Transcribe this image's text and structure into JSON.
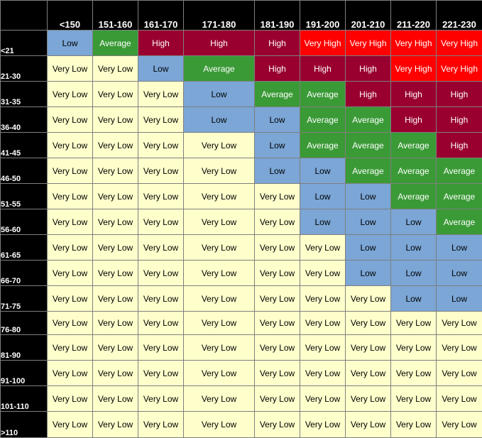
{
  "chart_data": {
    "type": "table",
    "columns": [
      "<150",
      "151-160",
      "161-170",
      "171-180",
      "181-190",
      "191-200",
      "201-210",
      "211-220",
      "221-230"
    ],
    "rows": [
      "<21",
      "21-30",
      "31-35",
      "36-40",
      "41-45",
      "46-50",
      "51-55",
      "56-60",
      "61-65",
      "66-70",
      "71-75",
      "76-80",
      "81-90",
      "91-100",
      "101-110",
      ">110"
    ],
    "cells": [
      [
        "Low",
        "Average",
        "High",
        "High",
        "High",
        "Very High",
        "Very High",
        "Very High",
        "Very High"
      ],
      [
        "Very Low",
        "Very Low",
        "Low",
        "Average",
        "High",
        "High",
        "High",
        "Very High",
        "Very High"
      ],
      [
        "Very Low",
        "Very Low",
        "Very Low",
        "Low",
        "Average",
        "Average",
        "High",
        "High",
        "High"
      ],
      [
        "Very Low",
        "Very Low",
        "Very Low",
        "Low",
        "Low",
        "Average",
        "Average",
        "High",
        "High"
      ],
      [
        "Very Low",
        "Very Low",
        "Very Low",
        "Very Low",
        "Low",
        "Average",
        "Average",
        "Average",
        "High"
      ],
      [
        "Very Low",
        "Very Low",
        "Very Low",
        "Very Low",
        "Low",
        "Low",
        "Average",
        "Average",
        "Average"
      ],
      [
        "Very Low",
        "Very Low",
        "Very Low",
        "Very Low",
        "Very Low",
        "Low",
        "Low",
        "Average",
        "Average"
      ],
      [
        "Very Low",
        "Very Low",
        "Very Low",
        "Very Low",
        "Very Low",
        "Low",
        "Low",
        "Low",
        "Average"
      ],
      [
        "Very Low",
        "Very Low",
        "Very Low",
        "Very Low",
        "Very Low",
        "Very Low",
        "Low",
        "Low",
        "Low"
      ],
      [
        "Very Low",
        "Very Low",
        "Very Low",
        "Very Low",
        "Very Low",
        "Very Low",
        "Low",
        "Low",
        "Low"
      ],
      [
        "Very Low",
        "Very Low",
        "Very Low",
        "Very Low",
        "Very Low",
        "Very Low",
        "Very Low",
        "Low",
        "Low"
      ],
      [
        "Very Low",
        "Very Low",
        "Very Low",
        "Very Low",
        "Very Low",
        "Very Low",
        "Very Low",
        "Very Low",
        "Very Low"
      ],
      [
        "Very Low",
        "Very Low",
        "Very Low",
        "Very Low",
        "Very Low",
        "Very Low",
        "Very Low",
        "Very Low",
        "Very Low"
      ],
      [
        "Very Low",
        "Very Low",
        "Very Low",
        "Very Low",
        "Very Low",
        "Very Low",
        "Very Low",
        "Very Low",
        "Very Low"
      ],
      [
        "Very Low",
        "Very Low",
        "Very Low",
        "Very Low",
        "Very Low",
        "Very Low",
        "Very Low",
        "Very Low",
        "Very Low"
      ],
      [
        "Very Low",
        "Very Low",
        "Very Low",
        "Very Low",
        "Very Low",
        "Very Low",
        "Very Low",
        "Very Low",
        "Very Low"
      ]
    ],
    "colors": {
      "Very Low": {
        "bg": "#ffffcc",
        "fg": "#000000"
      },
      "Low": {
        "bg": "#7ba6d6",
        "fg": "#000000"
      },
      "Average": {
        "bg": "#3a9a36",
        "fg": "#ffffff"
      },
      "High": {
        "bg": "#99002f",
        "fg": "#ffffff"
      },
      "Very High": {
        "bg": "#ff0000",
        "fg": "#ffffff"
      }
    },
    "header_background": "#000000",
    "header_text_color": "#ffffff",
    "grid": true
  }
}
